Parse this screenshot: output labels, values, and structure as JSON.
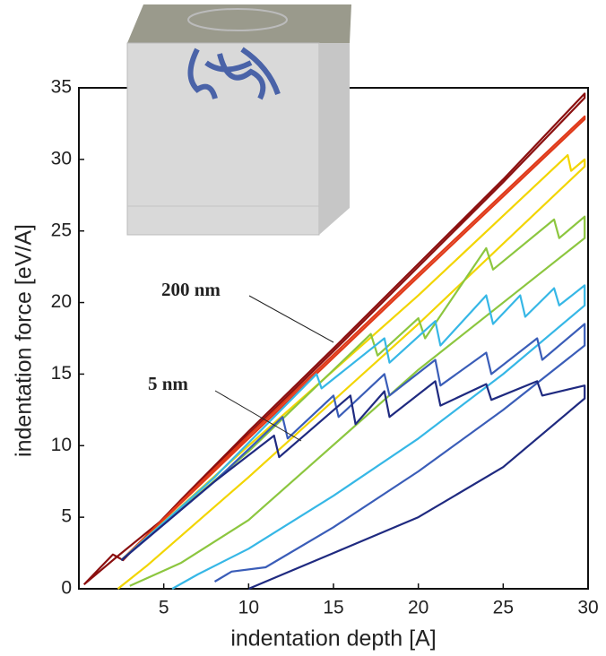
{
  "chart_data": {
    "type": "line",
    "x_label": "indentation depth [A]",
    "y_label": "indentation force [eV/A]",
    "annotations": [
      "200 nm",
      "5 nm"
    ],
    "xlim": [
      0,
      30
    ],
    "xticks": [
      5,
      10,
      15,
      20,
      25,
      30
    ],
    "ylim": [
      0,
      35
    ],
    "yticks": [
      0,
      5,
      10,
      15,
      20,
      25,
      30,
      35
    ],
    "grid": false,
    "series": [
      {
        "color": "#8b1010",
        "x": [
          0.3,
          2,
          2.6,
          6,
          10,
          15,
          20,
          25,
          29.8,
          29.8,
          25,
          20,
          15,
          10,
          5,
          2.2,
          0.3
        ],
        "values": [
          0.3,
          2.4,
          2.0,
          6.2,
          11.0,
          16.8,
          22.7,
          28.6,
          34.6,
          34.3,
          28.4,
          22.5,
          16.6,
          10.8,
          4.9,
          2.2,
          0.3
        ]
      },
      {
        "color": "#e03a1a",
        "x": [
          2.5,
          10,
          20,
          29.8,
          29.8,
          20,
          10,
          2.5
        ],
        "values": [
          2,
          10.7,
          22.0,
          33.0,
          32.8,
          21.8,
          10.5,
          2
        ]
      },
      {
        "color": "#f2d500",
        "x": [
          2.5,
          10,
          20,
          28.8,
          29,
          29.8,
          29.8,
          20,
          10,
          4,
          2.3
        ],
        "values": [
          2,
          10.0,
          20.5,
          30.3,
          29.2,
          30.0,
          29.5,
          18.5,
          7.8,
          1.6,
          0
        ]
      },
      {
        "color": "#8cc63f",
        "x": [
          2.5,
          10,
          17.2,
          17.6,
          20,
          20.4,
          24,
          24.4,
          28,
          28.3,
          29.8,
          29.8,
          20,
          10,
          6,
          3
        ],
        "values": [
          2,
          9.6,
          17.8,
          16.3,
          18.9,
          17.5,
          23.8,
          22.3,
          25.8,
          24.5,
          26,
          24.5,
          15.3,
          4.8,
          1.8,
          0.2
        ]
      },
      {
        "color": "#36b7e6",
        "x": [
          2.5,
          8,
          14,
          14.3,
          18,
          18.3,
          21,
          21.3,
          24,
          24.4,
          26,
          26.3,
          28,
          28.3,
          29.8,
          29.8,
          25,
          20,
          15,
          10,
          7,
          5.5
        ],
        "values": [
          2,
          7.8,
          15,
          14,
          17.5,
          15.8,
          18.7,
          17,
          20.5,
          18.5,
          20.5,
          19,
          21,
          19.8,
          21.2,
          19.8,
          15,
          10.5,
          6.5,
          2.8,
          1.0,
          0
        ]
      },
      {
        "color": "#3a5db8",
        "x": [
          2.5,
          8,
          12,
          12.3,
          15,
          15.3,
          18,
          18.3,
          21,
          21.3,
          24,
          24.3,
          27,
          27.3,
          29.8,
          29.8,
          25,
          20,
          15,
          11,
          9,
          8
        ],
        "values": [
          2,
          7.5,
          12.0,
          10.5,
          13.5,
          12,
          15.0,
          13.5,
          16.0,
          14.2,
          16.5,
          15.0,
          17.5,
          16,
          18.5,
          17,
          12.5,
          8.2,
          4.3,
          1.5,
          1.2,
          0.5
        ]
      },
      {
        "color": "#1f2a80",
        "x": [
          2.5,
          8,
          11.5,
          11.8,
          16,
          16.3,
          18,
          18.3,
          21,
          21.3,
          24,
          24.3,
          27,
          27.3,
          29.8,
          29.8,
          25,
          20,
          15,
          12,
          10
        ],
        "values": [
          2,
          7.5,
          10.7,
          9.2,
          13.5,
          11.5,
          13.8,
          12,
          14.5,
          12.8,
          14.3,
          13.2,
          14.5,
          13.5,
          14.2,
          13.3,
          8.5,
          5,
          2.5,
          1.0,
          0
        ]
      }
    ]
  }
}
